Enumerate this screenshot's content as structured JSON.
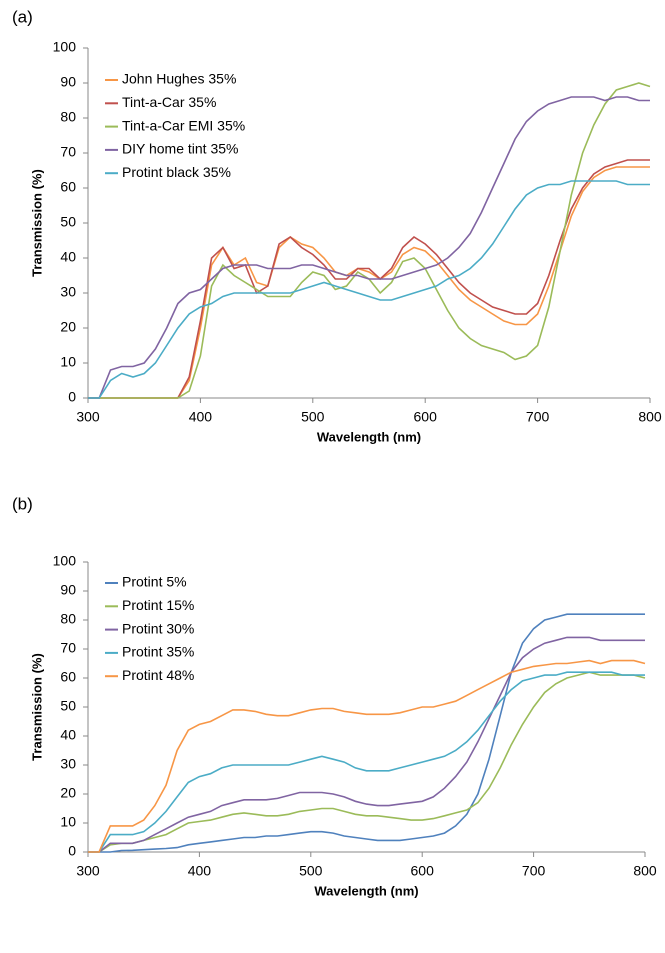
{
  "chart_data": [
    {
      "type": "line",
      "panel_label": "(a)",
      "xlabel": "Wavelength (nm)",
      "ylabel": "Transmission (%)",
      "x": [
        300,
        310,
        320,
        330,
        340,
        350,
        360,
        370,
        380,
        390,
        400,
        410,
        420,
        430,
        440,
        450,
        460,
        470,
        480,
        490,
        500,
        510,
        520,
        530,
        540,
        550,
        560,
        570,
        580,
        590,
        600,
        610,
        620,
        630,
        640,
        650,
        660,
        670,
        680,
        690,
        700,
        710,
        720,
        730,
        740,
        750,
        760,
        770,
        780,
        790,
        800
      ],
      "xlim": [
        300,
        800
      ],
      "xticks": [
        300,
        400,
        500,
        600,
        700,
        800
      ],
      "ylim": [
        0,
        100
      ],
      "yticks": [
        0,
        10,
        20,
        30,
        40,
        50,
        60,
        70,
        80,
        90,
        100
      ],
      "legend": "upper left",
      "series": [
        {
          "name": "John Hughes 35%",
          "color": "#f79646",
          "values": [
            0,
            0,
            0,
            0,
            0,
            0,
            0,
            0,
            0,
            5,
            20,
            38,
            43,
            38,
            40,
            33,
            32,
            43,
            46,
            44,
            43,
            40,
            36,
            35,
            37,
            36,
            34,
            36,
            41,
            43,
            42,
            39,
            35,
            31,
            28,
            26,
            24,
            22,
            21,
            21,
            24,
            32,
            42,
            52,
            59,
            63,
            65,
            66,
            66,
            66,
            66
          ]
        },
        {
          "name": "Tint-a-Car 35%",
          "color": "#c0504d",
          "values": [
            0,
            0,
            0,
            0,
            0,
            0,
            0,
            0,
            0,
            6,
            22,
            40,
            43,
            37,
            38,
            30,
            32,
            44,
            46,
            43,
            41,
            38,
            34,
            34,
            37,
            37,
            34,
            37,
            43,
            46,
            44,
            41,
            37,
            33,
            30,
            28,
            26,
            25,
            24,
            24,
            27,
            35,
            45,
            54,
            60,
            64,
            66,
            67,
            68,
            68,
            68
          ]
        },
        {
          "name": "Tint-a-Car EMI 35%",
          "color": "#9bbb59",
          "values": [
            0,
            0,
            0,
            0,
            0,
            0,
            0,
            0,
            0,
            2,
            12,
            32,
            38,
            35,
            33,
            31,
            29,
            29,
            29,
            33,
            36,
            35,
            31,
            32,
            36,
            34,
            30,
            33,
            39,
            40,
            37,
            31,
            25,
            20,
            17,
            15,
            14,
            13,
            11,
            12,
            15,
            26,
            42,
            58,
            70,
            78,
            84,
            88,
            89,
            90,
            89
          ]
        },
        {
          "name": "DIY home tint 35%",
          "color": "#8064a2",
          "values": [
            0,
            0,
            8,
            9,
            9,
            10,
            14,
            20,
            27,
            30,
            31,
            34,
            37,
            38,
            38,
            38,
            37,
            37,
            37,
            38,
            38,
            37,
            36,
            35,
            35,
            34,
            34,
            34,
            35,
            36,
            37,
            38,
            40,
            43,
            47,
            53,
            60,
            67,
            74,
            79,
            82,
            84,
            85,
            86,
            86,
            86,
            85,
            86,
            86,
            85,
            85
          ]
        },
        {
          "name": "Protint black 35%",
          "color": "#4bacc6",
          "values": [
            0,
            0,
            5,
            7,
            6,
            7,
            10,
            15,
            20,
            24,
            26,
            27,
            29,
            30,
            30,
            30,
            30,
            30,
            30,
            31,
            32,
            33,
            32,
            31,
            30,
            29,
            28,
            28,
            29,
            30,
            31,
            32,
            34,
            35,
            37,
            40,
            44,
            49,
            54,
            58,
            60,
            61,
            61,
            62,
            62,
            62,
            62,
            62,
            61,
            61,
            61
          ]
        }
      ]
    },
    {
      "type": "line",
      "panel_label": "(b)",
      "xlabel": "Wavelength (nm)",
      "ylabel": "Transmission (%)",
      "x": [
        300,
        310,
        320,
        330,
        340,
        350,
        360,
        370,
        380,
        390,
        400,
        410,
        420,
        430,
        440,
        450,
        460,
        470,
        480,
        490,
        500,
        510,
        520,
        530,
        540,
        550,
        560,
        570,
        580,
        590,
        600,
        610,
        620,
        630,
        640,
        650,
        660,
        670,
        680,
        690,
        700,
        710,
        720,
        730,
        740,
        750,
        760,
        770,
        780,
        790,
        800
      ],
      "xlim": [
        300,
        800
      ],
      "xticks": [
        300,
        400,
        500,
        600,
        700,
        800
      ],
      "ylim": [
        0,
        100
      ],
      "yticks": [
        0,
        10,
        20,
        30,
        40,
        50,
        60,
        70,
        80,
        90,
        100
      ],
      "legend": "upper left",
      "series": [
        {
          "name": "Protint 5%",
          "color": "#4f81bd",
          "values": [
            0,
            0,
            0,
            0.5,
            0.6,
            0.8,
            1,
            1.2,
            1.5,
            2.5,
            3,
            3.5,
            4,
            4.5,
            5,
            5,
            5.5,
            5.5,
            6,
            6.5,
            7,
            7,
            6.5,
            5.5,
            5,
            4.5,
            4,
            4,
            4,
            4.5,
            5,
            5.5,
            6.5,
            9,
            13,
            20,
            32,
            47,
            62,
            72,
            77,
            80,
            81,
            82,
            82,
            82,
            82,
            82,
            82,
            82,
            82
          ]
        },
        {
          "name": "Protint 15%",
          "color": "#9bbb59",
          "values": [
            0,
            0,
            2.5,
            3,
            3,
            4,
            5,
            6,
            8,
            10,
            10.5,
            11,
            12,
            13,
            13.5,
            13,
            12.5,
            12.5,
            13,
            14,
            14.5,
            15,
            15,
            14,
            13,
            12.5,
            12.5,
            12,
            11.5,
            11,
            11,
            11.5,
            12.5,
            13.5,
            14.5,
            17,
            22,
            29,
            37,
            44,
            50,
            55,
            58,
            60,
            61,
            62,
            61,
            61,
            61,
            61,
            60
          ]
        },
        {
          "name": "Protint 30%",
          "color": "#8064a2",
          "values": [
            0,
            0,
            3,
            3,
            3,
            4,
            6,
            8,
            10,
            12,
            13,
            14,
            16,
            17,
            18,
            18,
            18,
            18.5,
            19.5,
            20.5,
            20.5,
            20.5,
            20,
            19,
            17.5,
            16.5,
            16,
            16,
            16.5,
            17,
            17.5,
            19,
            22,
            26,
            31,
            38,
            46,
            54,
            62,
            67,
            70,
            72,
            73,
            74,
            74,
            74,
            73,
            73,
            73,
            73,
            73
          ]
        },
        {
          "name": "Protint 35%",
          "color": "#4bacc6",
          "values": [
            0,
            0,
            6,
            6,
            6,
            7,
            10,
            14,
            19,
            24,
            26,
            27,
            29,
            30,
            30,
            30,
            30,
            30,
            30,
            31,
            32,
            33,
            32,
            31,
            29,
            28,
            28,
            28,
            29,
            30,
            31,
            32,
            33,
            35,
            38,
            42,
            47,
            52,
            56,
            59,
            60,
            61,
            61,
            62,
            62,
            62,
            62,
            62,
            61,
            61,
            61
          ]
        },
        {
          "name": "Protint 48%",
          "color": "#f79646",
          "values": [
            0,
            0,
            9,
            9,
            9,
            11,
            16,
            23,
            35,
            42,
            44,
            45,
            47,
            49,
            49,
            48.5,
            47.5,
            47,
            47,
            48,
            49,
            49.5,
            49.5,
            48.5,
            48,
            47.5,
            47.5,
            47.5,
            48,
            49,
            50,
            50,
            51,
            52,
            54,
            56,
            58,
            60,
            62,
            63,
            64,
            64.5,
            65,
            65,
            65.5,
            66,
            65,
            66,
            66,
            66,
            65
          ]
        }
      ]
    }
  ]
}
